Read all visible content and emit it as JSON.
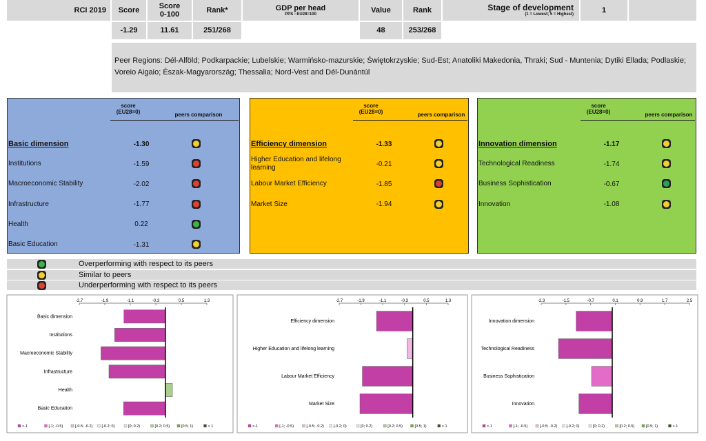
{
  "summary": {
    "label": "RCI 2019",
    "score_label": "Score",
    "score100_label": "Score 0-100",
    "rank_label": "Rank*",
    "gdp_label": "GDP per head",
    "gdp_sub": "PPS - EU28=100",
    "value_label": "Value",
    "gdp_rank_label": "Rank",
    "stage_label": "Stage of development",
    "stage_note": "(1 = Lowest; 5 = Highest)",
    "stage": 1,
    "score": -1.29,
    "score100": 11.61,
    "rank": "251/268",
    "gdp_value": 48,
    "gdp_rank": "253/268"
  },
  "peers": "Peer Regions: Dél-Alföld; Podkarpackie; Lubelskie; Warmińsko-mazurskie; Świętokrzyskie; Sud-Est; Anatoliki Makedonia, Thraki; Sud - Muntenia; Dytiki Ellada; Podlaskie; Voreio Aigaio; Észak-Magyarország; Thessalia; Nord-Vest and Dél-Dunántúl",
  "panels": [
    {
      "color": "#8eaadb",
      "score_header": "score (EU28=0)",
      "peers_header": "peers comparison",
      "dimension": {
        "name": "Basic dimension",
        "score": -1.3,
        "score_label": "-1.30",
        "peer_color": "#f2cf2f",
        "bar_color": "#c23fa6"
      },
      "rows": [
        {
          "name": "Institutions",
          "score": -1.59,
          "peer_color": "#e0402f",
          "bar_color": "#c23fa6"
        },
        {
          "name": "Macroeconomic Stability",
          "score": -2.02,
          "peer_color": "#e0402f",
          "bar_color": "#c23fa6"
        },
        {
          "name": "Infrastructure",
          "score": -1.77,
          "peer_color": "#e0402f",
          "bar_color": "#c23fa6"
        },
        {
          "name": "Health",
          "score": 0.22,
          "peer_color": "#3bb54a",
          "bar_color": "#a9d18e"
        },
        {
          "name": "Basic Education",
          "score": -1.31,
          "peer_color": "#f2cf2f",
          "bar_color": "#c23fa6"
        }
      ],
      "chart": {
        "xlim": [
          -2.7,
          1.3
        ],
        "xticks": [
          -2.7,
          -1.9,
          -1.1,
          -0.3,
          0.5,
          1.3
        ]
      }
    },
    {
      "color": "#ffc000",
      "score_header": "score (EU28=0)",
      "peers_header": "peers comparison",
      "dimension": {
        "name": "Efficiency dimension",
        "score": -1.33,
        "peer_color": "#f2cf2f",
        "bar_color": "#c23fa6"
      },
      "rows": [
        {
          "name": "Higher Education and lifelong learning",
          "score": -0.21,
          "peer_color": "#f2cf2f",
          "bar_color": "#f2b8e3"
        },
        {
          "name": "Labour Market Efficiency",
          "score": -1.85,
          "peer_color": "#e0402f",
          "bar_color": "#c23fa6"
        },
        {
          "name": "Market Size",
          "score": -1.94,
          "peer_color": "#f2cf2f",
          "bar_color": "#c23fa6"
        }
      ],
      "chart": {
        "xlim": [
          -2.7,
          1.3
        ],
        "xticks": [
          -2.7,
          -1.9,
          -1.1,
          -0.3,
          0.5,
          1.3
        ]
      }
    },
    {
      "color": "#92d050",
      "score_header": "score (EU28=0)",
      "peers_header": "peers comparison",
      "dimension": {
        "name": "Innovation dimension",
        "score": -1.17,
        "peer_color": "#f2cf2f",
        "bar_color": "#c23fa6"
      },
      "rows": [
        {
          "name": "Technological Readiness",
          "score": -1.74,
          "peer_color": "#f2cf2f",
          "bar_color": "#c23fa6"
        },
        {
          "name": "Business Sophistication",
          "score": -0.67,
          "peer_color": "#2f9e5a",
          "bar_color": "#e36cc9"
        },
        {
          "name": "Innovation",
          "score": -1.08,
          "peer_color": "#f2cf2f",
          "bar_color": "#c23fa6"
        }
      ],
      "chart": {
        "xlim": [
          -2.3,
          2.5
        ],
        "xticks": [
          -2.3,
          -1.5,
          -0.7,
          0.1,
          0.9,
          1.7,
          2.5
        ]
      }
    }
  ],
  "legend": [
    {
      "label": "Overperforming with respect to its peers",
      "color": "#3bb54a"
    },
    {
      "label": "Similar to peers",
      "color": "#f2cf2f"
    },
    {
      "label": "Underperforming with respect to its peers",
      "color": "#e0402f"
    }
  ],
  "chart_legend": [
    {
      "label": "<-1",
      "color": "#c23fa6"
    },
    {
      "label": "[-1; -0.5)",
      "color": "#e36cc9"
    },
    {
      "label": "[-0.5; -0.2)",
      "color": "#f2b8e3"
    },
    {
      "label": "[-0.2; 0)",
      "color": "#fbe3f4"
    },
    {
      "label": "[0; 0.2)",
      "color": "#e2efd9"
    },
    {
      "label": "[0.2; 0.5)",
      "color": "#a9d18e"
    },
    {
      "label": "[0.5; 1)",
      "color": "#70ad47"
    },
    {
      "label": "> 1",
      "color": "#375623"
    }
  ]
}
